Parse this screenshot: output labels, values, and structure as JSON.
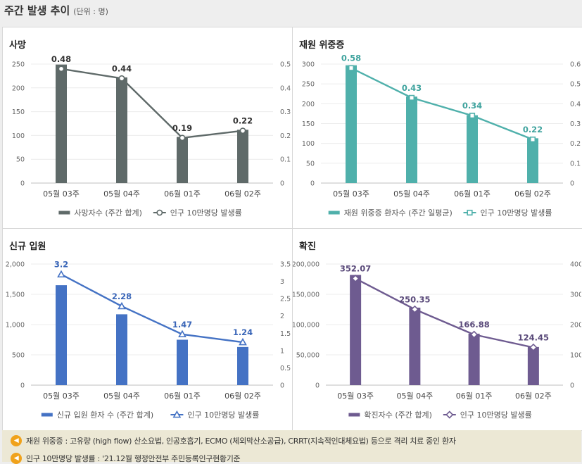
{
  "header": {
    "title": "주간 발생 추이",
    "unit": "(단위 : 명)"
  },
  "notes": [
    "재원 위중증 : 고유량 (high flow) 산소요법, 인공호흡기, ECMO (체외막산소공급), CRRT(지속적인대체요법) 등으로 격리 치료 중인 환자",
    "인구 10만명당 발생률 : '21.12월 행정안전부 주민등록인구현황기준"
  ],
  "chart_data": [
    {
      "type": "bar",
      "title": "사망",
      "categories": [
        "05월 03주",
        "05월 04주",
        "06월 01주",
        "06월 02주"
      ],
      "series": [
        {
          "name": "사망자수 (주간 합계)",
          "type": "bar",
          "axis": "left",
          "values": [
            249,
            222,
            97,
            112
          ]
        },
        {
          "name": "인구 10만명당 발생률",
          "type": "line",
          "axis": "right",
          "values": [
            0.48,
            0.44,
            0.19,
            0.22
          ],
          "marker": "circle"
        }
      ],
      "left_axis": {
        "min": 0,
        "max": 250,
        "ticks": [
          "0",
          "50",
          "100",
          "150",
          "200",
          "250"
        ]
      },
      "right_axis": {
        "min": 0,
        "max": 0.5,
        "ticks": [
          "0",
          "0.1",
          "0.2",
          "0.3",
          "0.4",
          "0.5"
        ]
      },
      "data_labels": [
        "0.48",
        "0.44",
        "0.19",
        "0.22"
      ],
      "bar_color": "#5f6a69",
      "line_color": "#5f6a69",
      "label_color": "#333333",
      "legend_position": "bottom"
    },
    {
      "type": "bar",
      "title": "재원 위중증",
      "categories": [
        "05월 03주",
        "05월 04주",
        "06월 01주",
        "06월 02주"
      ],
      "series": [
        {
          "name": "재원 위중증 환자수 (주간 일평균)",
          "type": "bar",
          "axis": "left",
          "values": [
            297,
            218,
            171,
            113
          ]
        },
        {
          "name": "인구 10만명당 발생률",
          "type": "line",
          "axis": "right",
          "values": [
            0.58,
            0.43,
            0.34,
            0.22
          ],
          "marker": "square"
        }
      ],
      "left_axis": {
        "min": 0,
        "max": 300,
        "ticks": [
          "0",
          "50",
          "100",
          "150",
          "200",
          "250",
          "300"
        ]
      },
      "right_axis": {
        "min": 0,
        "max": 0.6,
        "ticks": [
          "0",
          "0.1",
          "0.2",
          "0.3",
          "0.4",
          "0.5",
          "0.6"
        ]
      },
      "data_labels": [
        "0.58",
        "0.43",
        "0.34",
        "0.22"
      ],
      "bar_color": "#4fb0ab",
      "line_color": "#4fb0ab",
      "label_color": "#3fa39e",
      "legend_position": "bottom"
    },
    {
      "type": "bar",
      "title": "신규 입원",
      "categories": [
        "05월 03주",
        "05월 04주",
        "06월 01주",
        "06월 02주"
      ],
      "series": [
        {
          "name": "신규 입원 환자 수 (주간 합계)",
          "type": "bar",
          "axis": "left",
          "values": [
            1650,
            1170,
            750,
            630
          ]
        },
        {
          "name": "인구 10만명당 발생률",
          "type": "line",
          "axis": "right",
          "values": [
            3.2,
            2.28,
            1.47,
            1.24
          ],
          "marker": "triangle"
        }
      ],
      "left_axis": {
        "min": 0,
        "max": 2000,
        "ticks": [
          "0",
          "500",
          "1,000",
          "1,500",
          "2,000"
        ]
      },
      "right_axis": {
        "min": 0,
        "max": 3.5,
        "ticks": [
          "0",
          "0.5",
          "1",
          "1.5",
          "2",
          "2.5",
          "3",
          "3.5"
        ]
      },
      "data_labels": [
        "3.2",
        "2.28",
        "1.47",
        "1.24"
      ],
      "bar_color": "#4472c4",
      "line_color": "#4472c4",
      "label_color": "#3a66b8",
      "legend_position": "bottom"
    },
    {
      "type": "bar",
      "title": "확진",
      "categories": [
        "05월 03주",
        "05월 04주",
        "06월 01주",
        "06월 02주"
      ],
      "series": [
        {
          "name": "확진자수 (주간 합계)",
          "type": "bar",
          "axis": "left",
          "values": [
            182000,
            128000,
            85000,
            63000
          ]
        },
        {
          "name": "인구 10만명당 발생률",
          "type": "line",
          "axis": "right",
          "values": [
            352.07,
            250.35,
            166.88,
            124.45
          ],
          "marker": "diamond"
        }
      ],
      "left_axis": {
        "min": 0,
        "max": 200000,
        "ticks": [
          "0",
          "50,000",
          "100,000",
          "150,000",
          "200,000"
        ]
      },
      "right_axis": {
        "min": 0,
        "max": 400,
        "ticks": [
          "0",
          "100",
          "200",
          "300",
          "400"
        ]
      },
      "data_labels": [
        "352.07",
        "250.35",
        "166.88",
        "124.45"
      ],
      "bar_color": "#6e5b90",
      "line_color": "#6e5b90",
      "label_color": "#5a4a7a",
      "legend_position": "bottom"
    }
  ]
}
